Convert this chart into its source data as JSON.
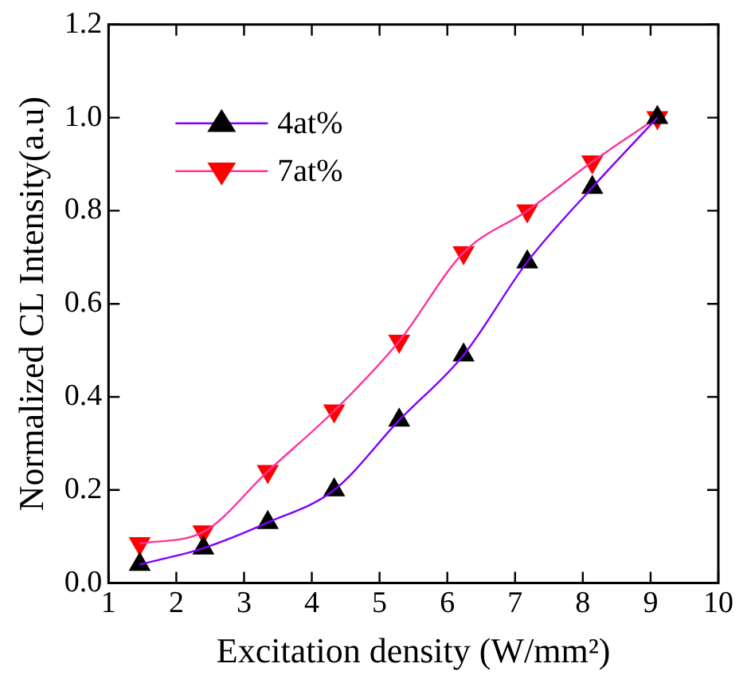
{
  "chart_data": {
    "type": "line",
    "xlabel": "Excitation density (W/mm²)",
    "ylabel": "Normalized CL Intensity(a.u)",
    "x": [
      1.46,
      2.4,
      3.35,
      4.33,
      5.29,
      6.24,
      7.18,
      8.14,
      9.1
    ],
    "series": [
      {
        "color": "#8000ff",
        "marker": "none",
        "values": [
          0.04,
          0.075,
          0.13,
          0.2,
          0.35,
          0.49,
          0.69,
          0.85,
          1.0
        ]
      },
      {
        "type": "scatter",
        "name": "4at%",
        "color": "#000000",
        "marker": "triangle",
        "values": [
          0.04,
          0.075,
          0.13,
          0.2,
          0.35,
          0.49,
          0.69,
          0.85,
          1.0
        ]
      },
      {
        "color": "#ff3399",
        "marker": "none",
        "values": [
          0.085,
          0.11,
          0.24,
          0.37,
          0.52,
          0.71,
          0.8,
          0.905,
          1.0
        ]
      },
      {
        "type": "scatter",
        "name": "7at%",
        "color": "#ff0000",
        "marker": "triangle-down",
        "values": [
          0.085,
          0.11,
          0.24,
          0.37,
          0.52,
          0.71,
          0.8,
          0.905,
          1.0
        ]
      }
    ],
    "xlim": [
      1,
      10
    ],
    "xticks": [
      1,
      2,
      3,
      4,
      5,
      6,
      7,
      8,
      9,
      10
    ],
    "ylim": [
      0,
      1.2
    ],
    "yticks": [
      {
        "value": 0,
        "label": "0.0"
      },
      0.2,
      0.4,
      0.6,
      0.8,
      {
        "value": 1,
        "label": "1.0"
      },
      1.2
    ],
    "grid": false,
    "legend": "top left"
  }
}
